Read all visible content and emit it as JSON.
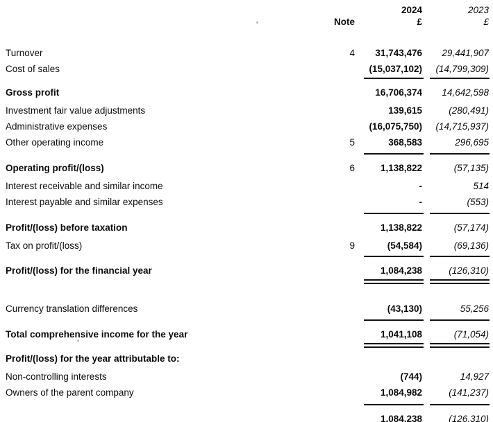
{
  "document": {
    "kind": "profit-and-loss-statement",
    "columns": {
      "note_header": "Note",
      "year_current": "2024",
      "year_prior": "2023",
      "currency_current": "£",
      "currency_prior": "£"
    }
  },
  "rows": [
    {
      "type": "row",
      "variant": "head",
      "gap": "g6",
      "label": "",
      "note": "",
      "c1": "2024",
      "c2": "2023"
    },
    {
      "type": "row",
      "variant": "head",
      "gap": "g0",
      "label": "",
      "note": "Note",
      "c1": "£",
      "c2": "£"
    },
    {
      "type": "row",
      "gap": "g25",
      "bold": false,
      "label": "Turnover",
      "note": "4",
      "c1": "31,743,476",
      "c2": "29,441,907"
    },
    {
      "type": "row",
      "gap": "g0",
      "bold": false,
      "label": "Cost of sales",
      "note": "",
      "c1": "(15,037,102)",
      "c2": "(14,799,309)"
    },
    {
      "type": "rule",
      "gap": "g1"
    },
    {
      "type": "row",
      "gap": "g8",
      "bold": true,
      "label": "Gross profit",
      "note": "",
      "c1": "16,706,374",
      "c2": "14,642,598"
    },
    {
      "type": "row",
      "gap": "g3",
      "bold": false,
      "label": "Investment fair value adjustments",
      "note": "",
      "c1": "139,615",
      "c2": "(280,491)"
    },
    {
      "type": "row",
      "gap": "g0",
      "bold": false,
      "label": "Administrative expenses",
      "note": "",
      "c1": "(16,075,750)",
      "c2": "(14,715,937)"
    },
    {
      "type": "row",
      "gap": "g0",
      "bold": false,
      "label": "Other operating income",
      "note": "5",
      "c1": "368,583",
      "c2": "296,695"
    },
    {
      "type": "rule",
      "gap": "g4"
    },
    {
      "type": "row",
      "gap": "g8",
      "bold": true,
      "label": "Operating profit/(loss)",
      "note": "6",
      "c1": "1,138,822",
      "c2": "(57,135)"
    },
    {
      "type": "row",
      "gap": "g3",
      "bold": false,
      "label": "Interest receivable and similar income",
      "note": "",
      "c1": "-",
      "c2": "514"
    },
    {
      "type": "row",
      "gap": "g0",
      "bold": false,
      "label": "Interest payable and similar expenses",
      "note": "",
      "c1": "-",
      "c2": "(553)"
    },
    {
      "type": "rule",
      "gap": "g4"
    },
    {
      "type": "row",
      "gap": "g8",
      "bold": true,
      "label": "Profit/(loss) before taxation",
      "note": "",
      "c1": "1,138,822",
      "c2": "(57,174)"
    },
    {
      "type": "row",
      "gap": "g3",
      "bold": false,
      "label": "Tax on profit/(loss)",
      "note": "9",
      "c1": "(54,584)",
      "c2": "(69,136)"
    },
    {
      "type": "rule",
      "gap": "g3"
    },
    {
      "type": "row",
      "gap": "g8",
      "bold": true,
      "label": "Profit/(loss) for the financial year",
      "note": "",
      "c1": "1,084,238",
      "c2": "(126,310)"
    },
    {
      "type": "dblrule",
      "gap": "g1"
    },
    {
      "type": "row",
      "gap": "g24",
      "bold": false,
      "label": "Currency translation differences",
      "note": "",
      "c1": "(43,130)",
      "c2": "55,256"
    },
    {
      "type": "rule",
      "gap": "g4"
    },
    {
      "type": "row",
      "gap": "g8",
      "bold": true,
      "label": "Total comprehensive income for the year",
      "note": "",
      "c1": "1,041,108",
      "c2": "(71,054)"
    },
    {
      "type": "dblrule",
      "gap": "g1"
    },
    {
      "type": "row",
      "gap": "g4",
      "bold": true,
      "label": "Profit/(loss) for the year attributable to:",
      "note": "",
      "c1": "",
      "c2": ""
    },
    {
      "type": "row",
      "gap": "g3",
      "bold": false,
      "label": "Non-controlling interests",
      "note": "",
      "c1": "(744)",
      "c2": "14,927"
    },
    {
      "type": "row",
      "gap": "g0",
      "bold": false,
      "label": "Owners of the parent company",
      "note": "",
      "c1": "1,084,982",
      "c2": "(141,237)"
    },
    {
      "type": "rule",
      "gap": "g5"
    },
    {
      "type": "row",
      "gap": "g8",
      "bold": false,
      "label": "",
      "note": "",
      "c1": "1,084,238",
      "c2": "(126,310)"
    }
  ]
}
